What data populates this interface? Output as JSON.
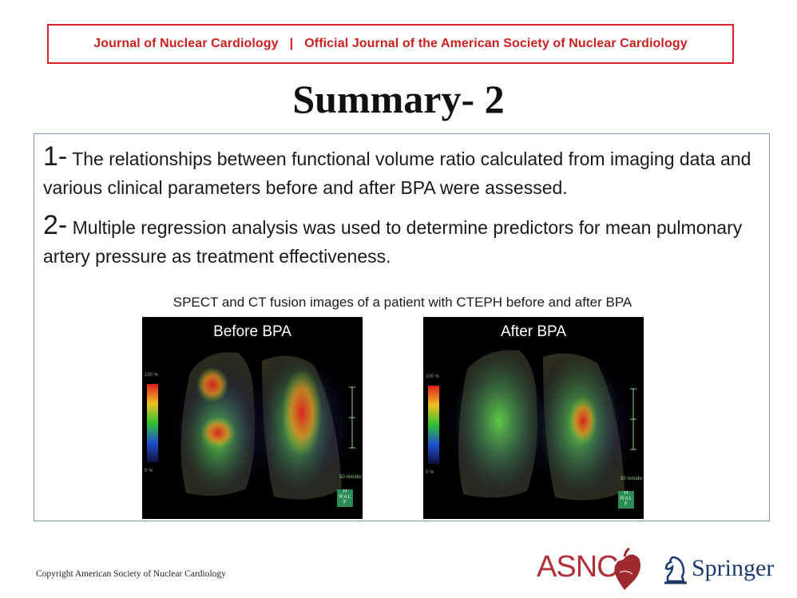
{
  "header": {
    "journal": "Journal of Nuclear Cardiology",
    "separator": "|",
    "subtitle": "Official Journal of the American Society of Nuclear Cardiology"
  },
  "slide": {
    "title": "Summary- 2",
    "points": [
      {
        "number": "1-",
        "text": " The relationships between functional volume ratio calculated from imaging data and various clinical parameters before and after BPA were assessed."
      },
      {
        "number": "2-",
        "text": " Multiple regression analysis was used to determine predictors for mean pulmonary artery pressure as treatment effectiveness."
      }
    ],
    "figure_caption": "SPECT and CT fusion images of a patient with CTEPH before and after BPA",
    "images": [
      {
        "label": "Before BPA",
        "scale_top": "100 %",
        "scale_bottom": "0 %",
        "unit_value": "50",
        "unit": "mm/div",
        "orientation": [
          "H",
          "R",
          "A",
          "L",
          "F"
        ]
      },
      {
        "label": "After BPA",
        "scale_top": "100 %",
        "scale_bottom": "0 %",
        "unit_value": "50",
        "unit": "mm/div",
        "orientation": [
          "H",
          "R",
          "A",
          "L",
          "F"
        ]
      }
    ]
  },
  "footer": {
    "copyright": "Copyright  American Society of Nuclear Cardiology",
    "asnc_logo": "ASNC",
    "springer_logo": "Springer"
  },
  "colors": {
    "header_red": "#d9232a",
    "box_border": "#7a9cc0",
    "asnc_red": "#b0313a",
    "springer_blue": "#1b3a6b"
  }
}
